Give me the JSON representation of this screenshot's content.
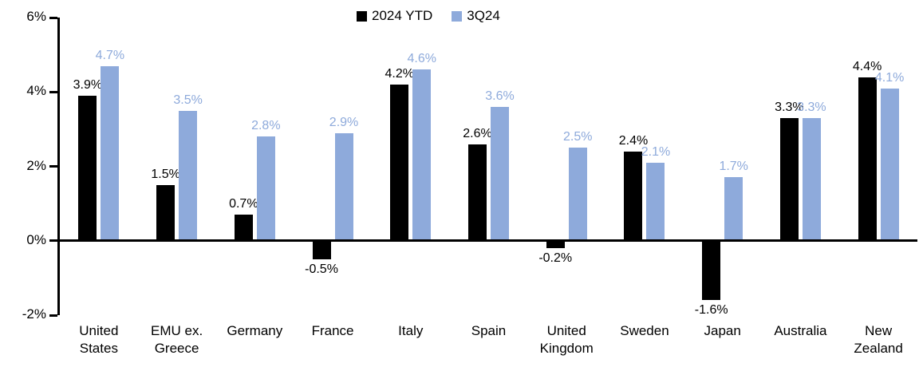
{
  "chart_data": {
    "type": "bar",
    "title": "",
    "xlabel": "",
    "ylabel": "",
    "value_suffix": "%",
    "ylim": [
      -2,
      6
    ],
    "grid": false,
    "legend_position": "top-center",
    "y_ticks": [
      {
        "value": 6,
        "label": "6%"
      },
      {
        "value": 4,
        "label": "4%"
      },
      {
        "value": 2,
        "label": "2%"
      },
      {
        "value": 0,
        "label": "0%"
      },
      {
        "value": -2,
        "label": "-2%"
      }
    ],
    "categories": [
      "United States",
      "EMU ex. Greece",
      "Germany",
      "France",
      "Italy",
      "Spain",
      "United Kingdom",
      "Sweden",
      "Japan",
      "Australia",
      "New Zealand"
    ],
    "category_label_lines": [
      [
        "United",
        "States"
      ],
      [
        "EMU ex.",
        "Greece"
      ],
      [
        "Germany"
      ],
      [
        "France"
      ],
      [
        "Italy"
      ],
      [
        "Spain"
      ],
      [
        "United",
        "Kingdom"
      ],
      [
        "Sweden"
      ],
      [
        "Japan"
      ],
      [
        "Australia"
      ],
      [
        "New",
        "Zealand"
      ]
    ],
    "series": [
      {
        "name": "2024 YTD",
        "color": "#000000",
        "values": [
          3.9,
          1.5,
          0.7,
          -0.5,
          4.2,
          2.6,
          -0.2,
          2.4,
          -1.6,
          3.3,
          4.4
        ],
        "labels": [
          "3.9%",
          "1.5%",
          "0.7%",
          "-0.5%",
          "4.2%",
          "2.6%",
          "-0.2%",
          "2.4%",
          "-1.6%",
          "3.3%",
          "4.4%"
        ]
      },
      {
        "name": "3Q24",
        "color": "#8EAADB",
        "values": [
          4.7,
          3.5,
          2.8,
          2.9,
          4.6,
          3.6,
          2.5,
          2.1,
          1.7,
          3.3,
          4.1
        ],
        "labels": [
          "4.7%",
          "3.5%",
          "2.8%",
          "2.9%",
          "4.6%",
          "3.6%",
          "2.5%",
          "2.1%",
          "1.7%",
          "3.3%",
          "4.1%"
        ]
      }
    ],
    "colors": {
      "axis": "#000000",
      "series_black": "#000000",
      "series_blue": "#8EAADB"
    }
  }
}
